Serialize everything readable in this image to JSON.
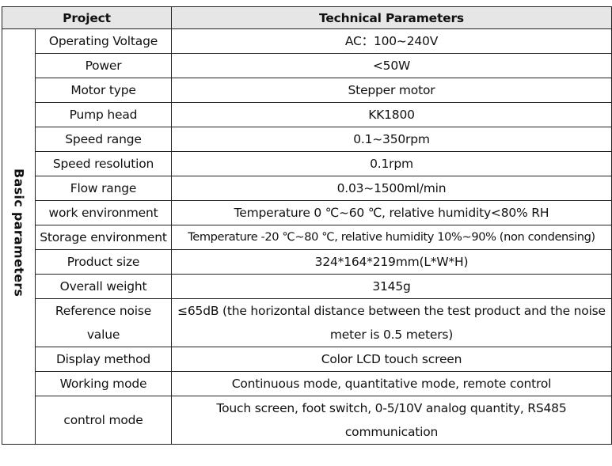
{
  "header": {
    "project": "Project",
    "technical": "Technical Parameters"
  },
  "category": "Basic parameters",
  "rows": [
    {
      "name": "Operating Voltage",
      "value": "AC：100~240V"
    },
    {
      "name": "Power",
      "value": "<50W"
    },
    {
      "name": "Motor type",
      "value": "Stepper motor"
    },
    {
      "name": "Pump head",
      "value": "KK1800"
    },
    {
      "name": "Speed range",
      "value": "0.1~350rpm"
    },
    {
      "name": "Speed resolution",
      "value": "0.1rpm"
    },
    {
      "name": "Flow range",
      "value": "0.03~1500ml/min"
    },
    {
      "name": "work environment",
      "value": "Temperature 0  ℃~60  ℃, relative humidity<80% RH"
    },
    {
      "name": "Storage environment",
      "value": "Temperature -20  ℃~80  ℃, relative humidity 10%~90% (non condensing)"
    },
    {
      "name": "Product size",
      "value": "324*164*219mm(L*W*H)"
    },
    {
      "name": "Overall weight",
      "value": "3145g"
    },
    {
      "name": "Reference noise value",
      "value": "≤65dB (the horizontal distance between the test product and the noise meter is 0.5 meters)"
    },
    {
      "name": "Display method",
      "value": "Color LCD touch screen"
    },
    {
      "name": "Working mode",
      "value": "Continuous mode, quantitative mode, remote control"
    },
    {
      "name": "control mode",
      "value": "Touch screen, foot switch, 0-5/10V analog quantity, RS485 communication"
    }
  ]
}
